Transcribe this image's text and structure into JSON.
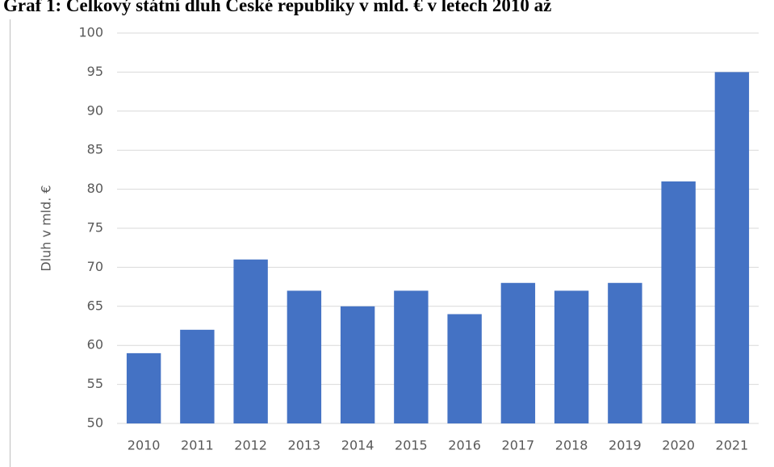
{
  "chart_data": {
    "type": "bar",
    "title": "Graf 1: Celkový státní dluh České republiky v mld. € v letech 2010 až",
    "y_label": "Dluh v mld. €",
    "categories": [
      "2010",
      "2011",
      "2012",
      "2013",
      "2014",
      "2015",
      "2016",
      "2017",
      "2018",
      "2019",
      "2020",
      "2021"
    ],
    "values": [
      59,
      62,
      71,
      67,
      65,
      67,
      64,
      68,
      67,
      68,
      81,
      95
    ],
    "color": "#4472c4",
    "ylim": [
      50,
      100
    ],
    "yticks": [
      50,
      55,
      60,
      65,
      70,
      75,
      80,
      85,
      90,
      95,
      100
    ],
    "grid": true
  }
}
